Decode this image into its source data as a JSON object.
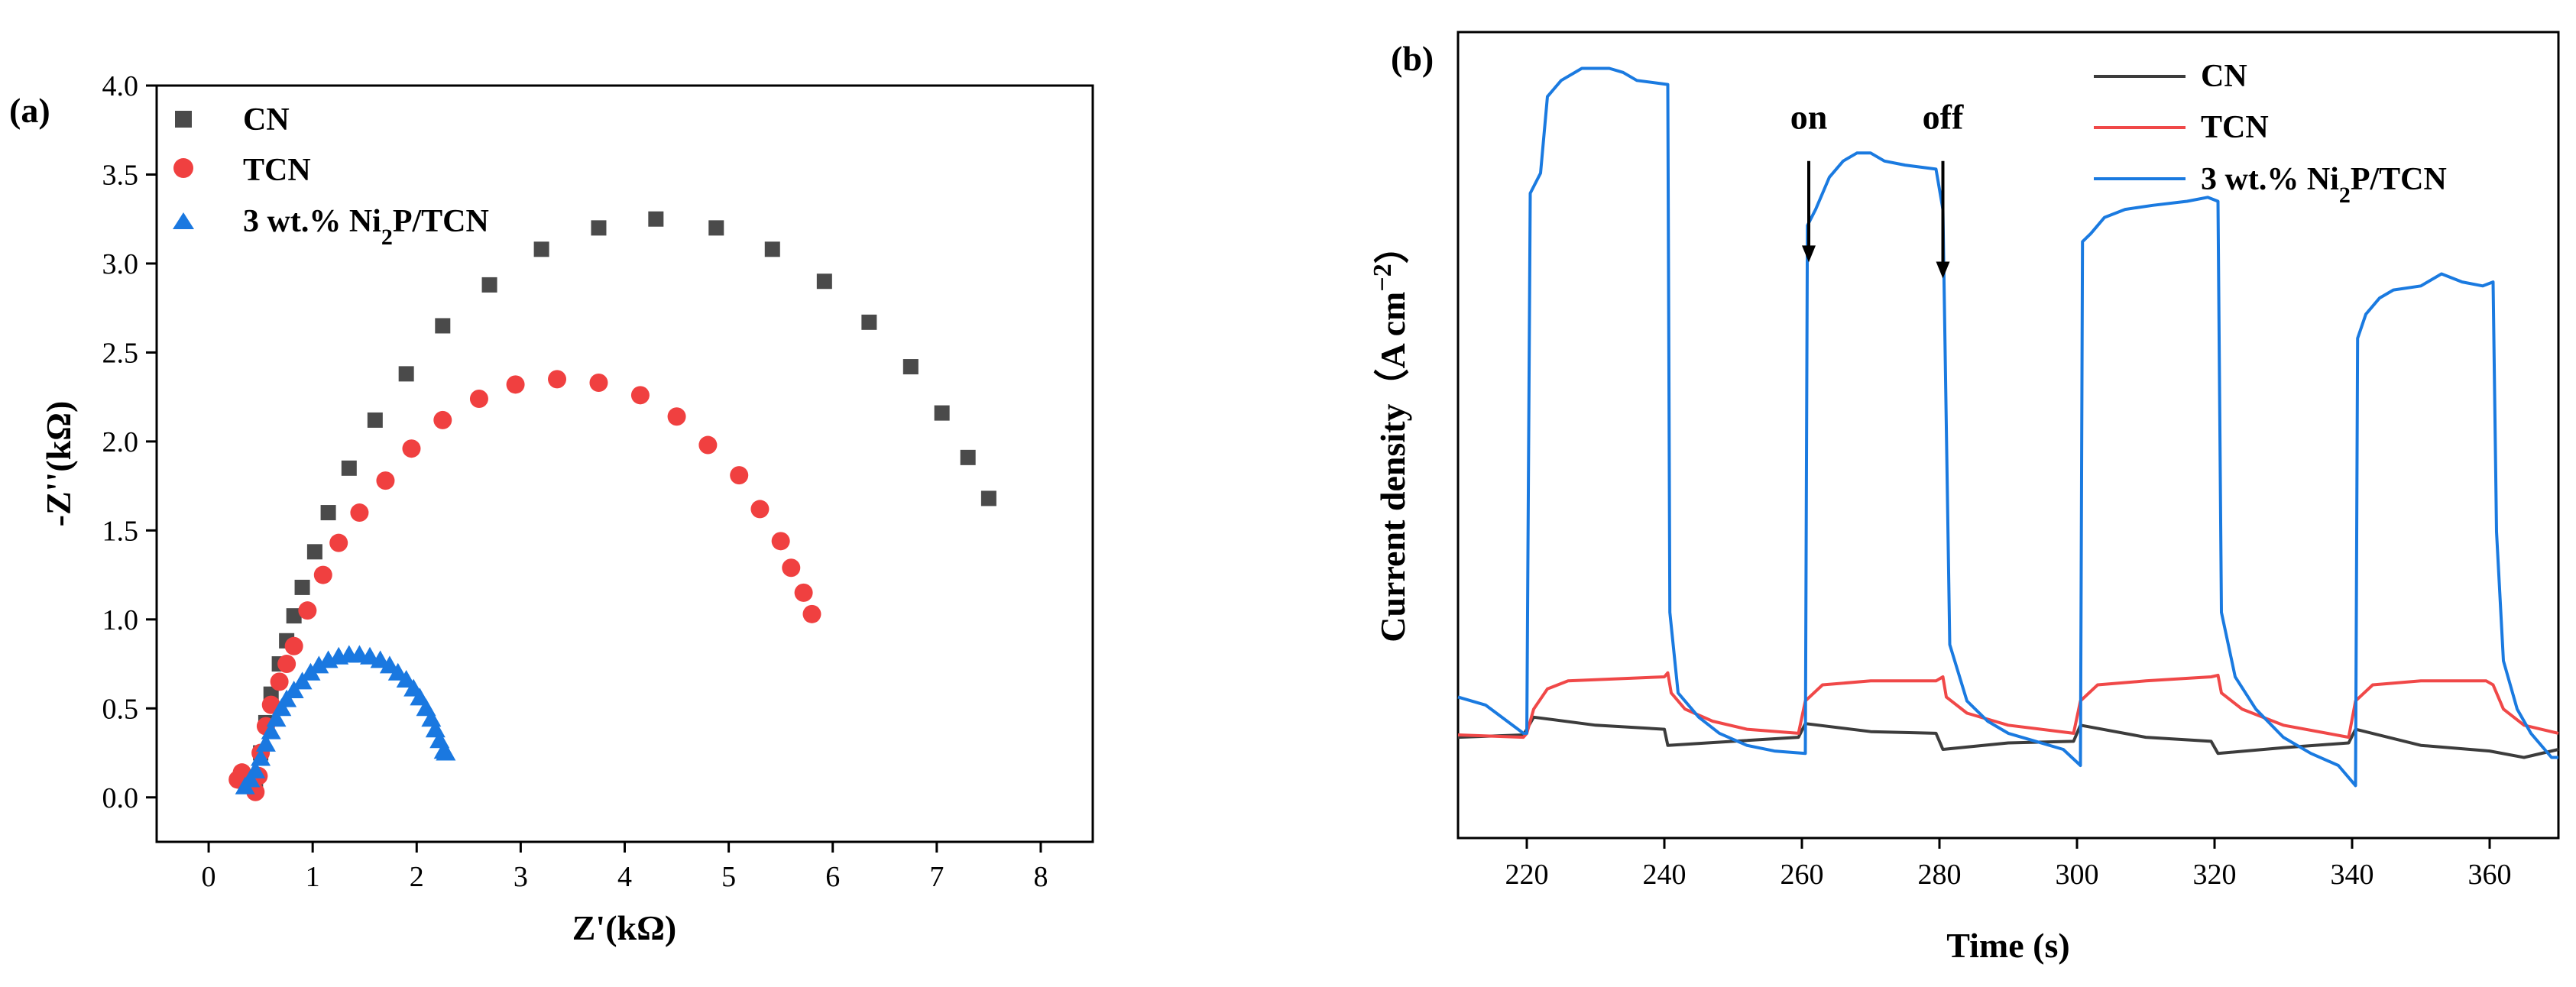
{
  "chart_data": [
    {
      "panel_label": "(a)",
      "type": "scatter",
      "xlabel": "Z'(kΩ)",
      "ylabel": "-Z''(kΩ)",
      "xlim": [
        -0.5,
        8.5
      ],
      "ylim": [
        -0.25,
        4.0
      ],
      "xticks": [
        0,
        1,
        2,
        3,
        4,
        5,
        6,
        7,
        8
      ],
      "yticks": [
        0.0,
        0.5,
        1.0,
        1.5,
        2.0,
        2.5,
        3.0,
        3.5,
        4.0
      ],
      "xtick_labels": [
        "0",
        "1",
        "2",
        "3",
        "4",
        "5",
        "6",
        "7",
        "8"
      ],
      "ytick_labels": [
        "0.0",
        "0.5",
        "1.0",
        "1.5",
        "2.0",
        "2.5",
        "3.0",
        "3.5",
        "4.0"
      ],
      "legend_position": "top-left",
      "series": [
        {
          "name": "CN",
          "marker": "square",
          "color": "#4a4a4a",
          "points": [
            [
              0.45,
              0.05
            ],
            [
              0.5,
              0.25
            ],
            [
              0.55,
              0.42
            ],
            [
              0.6,
              0.58
            ],
            [
              0.68,
              0.75
            ],
            [
              0.75,
              0.88
            ],
            [
              0.82,
              1.02
            ],
            [
              0.9,
              1.18
            ],
            [
              1.02,
              1.38
            ],
            [
              1.15,
              1.6
            ],
            [
              1.35,
              1.85
            ],
            [
              1.6,
              2.12
            ],
            [
              1.9,
              2.38
            ],
            [
              2.25,
              2.65
            ],
            [
              2.7,
              2.88
            ],
            [
              3.2,
              3.08
            ],
            [
              3.75,
              3.2
            ],
            [
              4.3,
              3.25
            ],
            [
              4.88,
              3.2
            ],
            [
              5.42,
              3.08
            ],
            [
              5.92,
              2.9
            ],
            [
              6.35,
              2.67
            ],
            [
              6.75,
              2.42
            ],
            [
              7.05,
              2.16
            ],
            [
              7.3,
              1.91
            ],
            [
              7.5,
              1.68
            ]
          ]
        },
        {
          "name": "TCN",
          "marker": "circle",
          "color": "#f04040",
          "points": [
            [
              0.28,
              0.1
            ],
            [
              0.32,
              0.14
            ],
            [
              0.38,
              0.08
            ],
            [
              0.45,
              0.03
            ],
            [
              0.48,
              0.12
            ],
            [
              0.5,
              0.25
            ],
            [
              0.55,
              0.4
            ],
            [
              0.6,
              0.52
            ],
            [
              0.68,
              0.65
            ],
            [
              0.75,
              0.75
            ],
            [
              0.82,
              0.85
            ],
            [
              0.95,
              1.05
            ],
            [
              1.1,
              1.25
            ],
            [
              1.25,
              1.43
            ],
            [
              1.45,
              1.6
            ],
            [
              1.7,
              1.78
            ],
            [
              1.95,
              1.96
            ],
            [
              2.25,
              2.12
            ],
            [
              2.6,
              2.24
            ],
            [
              2.95,
              2.32
            ],
            [
              3.35,
              2.35
            ],
            [
              3.75,
              2.33
            ],
            [
              4.15,
              2.26
            ],
            [
              4.5,
              2.14
            ],
            [
              4.8,
              1.98
            ],
            [
              5.1,
              1.81
            ],
            [
              5.3,
              1.62
            ],
            [
              5.5,
              1.44
            ],
            [
              5.6,
              1.29
            ],
            [
              5.72,
              1.15
            ],
            [
              5.8,
              1.03
            ]
          ]
        },
        {
          "name": "3 wt.% Ni2P/TCN",
          "marker": "triangle",
          "color": "#1a78e0",
          "points": [
            [
              0.35,
              0.06
            ],
            [
              0.4,
              0.1
            ],
            [
              0.45,
              0.15
            ],
            [
              0.5,
              0.22
            ],
            [
              0.55,
              0.3
            ],
            [
              0.6,
              0.37
            ],
            [
              0.65,
              0.44
            ],
            [
              0.7,
              0.5
            ],
            [
              0.75,
              0.55
            ],
            [
              0.82,
              0.6
            ],
            [
              0.9,
              0.65
            ],
            [
              0.98,
              0.7
            ],
            [
              1.06,
              0.74
            ],
            [
              1.15,
              0.77
            ],
            [
              1.25,
              0.79
            ],
            [
              1.35,
              0.8
            ],
            [
              1.45,
              0.8
            ],
            [
              1.55,
              0.79
            ],
            [
              1.65,
              0.77
            ],
            [
              1.74,
              0.74
            ],
            [
              1.82,
              0.7
            ],
            [
              1.9,
              0.66
            ],
            [
              1.97,
              0.61
            ],
            [
              2.03,
              0.56
            ],
            [
              2.09,
              0.5
            ],
            [
              2.14,
              0.44
            ],
            [
              2.18,
              0.38
            ],
            [
              2.22,
              0.32
            ],
            [
              2.26,
              0.26
            ],
            [
              2.28,
              0.25
            ]
          ]
        }
      ]
    },
    {
      "panel_label": "(b)",
      "type": "line",
      "xlabel": "Time (s)",
      "ylabel": "Current density（A cm",
      "ylabel_superscript": "−2",
      "ylabel_close": "）",
      "xlim": [
        210,
        370
      ],
      "ylim": [
        0,
        100
      ],
      "xticks": [
        220,
        240,
        260,
        280,
        300,
        320,
        340,
        360
      ],
      "xtick_labels": [
        "220",
        "240",
        "260",
        "280",
        "300",
        "320",
        "340",
        "360"
      ],
      "legend_position": "top-right",
      "annotations": [
        {
          "text": "on",
          "x": 261,
          "y_text": 88,
          "arrow_from": 84,
          "arrow_to": 72
        },
        {
          "text": "off",
          "x": 280.5,
          "y_text": 88,
          "arrow_from": 84,
          "arrow_to": 70
        }
      ],
      "series": [
        {
          "name": "CN",
          "color": "#3c3c3c",
          "points": [
            [
              210,
              12.5
            ],
            [
              219.5,
              12.8
            ],
            [
              220,
              13.5
            ],
            [
              221,
              15.0
            ],
            [
              230,
              14.0
            ],
            [
              240,
              13.5
            ],
            [
              240.5,
              11.5
            ],
            [
              250,
              12.0
            ],
            [
              259.5,
              12.5
            ],
            [
              260.5,
              14.2
            ],
            [
              270,
              13.2
            ],
            [
              279.5,
              13.0
            ],
            [
              280.5,
              11.0
            ],
            [
              290,
              11.8
            ],
            [
              299.5,
              12.0
            ],
            [
              300.5,
              14.0
            ],
            [
              310,
              12.5
            ],
            [
              319.5,
              12.0
            ],
            [
              320.5,
              10.5
            ],
            [
              330,
              11.2
            ],
            [
              339.5,
              11.8
            ],
            [
              340.5,
              13.5
            ],
            [
              350,
              11.5
            ],
            [
              360,
              10.8
            ],
            [
              365,
              10.0
            ],
            [
              370,
              11.0
            ]
          ]
        },
        {
          "name": "TCN",
          "color": "#f04848",
          "points": [
            [
              210,
              12.8
            ],
            [
              219.5,
              12.5
            ],
            [
              220,
              13.0
            ],
            [
              221,
              16.0
            ],
            [
              223,
              18.5
            ],
            [
              226,
              19.5
            ],
            [
              240,
              20.0
            ],
            [
              240.5,
              20.5
            ],
            [
              241,
              18.0
            ],
            [
              243,
              16.0
            ],
            [
              247,
              14.5
            ],
            [
              252,
              13.5
            ],
            [
              259.5,
              13.0
            ],
            [
              260.5,
              17.0
            ],
            [
              263,
              19.0
            ],
            [
              270,
              19.5
            ],
            [
              279.5,
              19.5
            ],
            [
              280.5,
              20.0
            ],
            [
              281,
              17.5
            ],
            [
              284,
              15.5
            ],
            [
              290,
              14.0
            ],
            [
              299.5,
              13.0
            ],
            [
              300.5,
              17.0
            ],
            [
              303,
              19.0
            ],
            [
              310,
              19.5
            ],
            [
              319.5,
              20.0
            ],
            [
              320.5,
              20.2
            ],
            [
              321,
              18.0
            ],
            [
              324,
              16.0
            ],
            [
              330,
              14.0
            ],
            [
              339.5,
              12.5
            ],
            [
              340.5,
              17.0
            ],
            [
              343,
              19.0
            ],
            [
              350,
              19.5
            ],
            [
              359.5,
              19.5
            ],
            [
              360.5,
              19.0
            ],
            [
              362,
              16.0
            ],
            [
              365,
              14.0
            ],
            [
              370,
              13.0
            ]
          ]
        },
        {
          "name": "3 wt.% Ni2P/TCN",
          "color": "#1a7ae0",
          "points": [
            [
              210,
              17.5
            ],
            [
              214,
              16.5
            ],
            [
              219.5,
              13.0
            ],
            [
              220,
              13.0
            ],
            [
              220.5,
              80.0
            ],
            [
              222,
              82.5
            ],
            [
              223,
              92.0
            ],
            [
              225,
              94.0
            ],
            [
              228,
              95.5
            ],
            [
              232,
              95.5
            ],
            [
              234,
              95.0
            ],
            [
              236,
              94.0
            ],
            [
              240.5,
              93.5
            ],
            [
              240.8,
              28.0
            ],
            [
              242,
              18.0
            ],
            [
              245,
              15.0
            ],
            [
              248,
              13.0
            ],
            [
              252,
              11.5
            ],
            [
              256,
              10.8
            ],
            [
              260.5,
              10.5
            ],
            [
              260.8,
              76.0
            ],
            [
              262,
              78.0
            ],
            [
              264,
              82.0
            ],
            [
              266,
              84.0
            ],
            [
              268,
              85.0
            ],
            [
              270,
              85.0
            ],
            [
              272,
              84.0
            ],
            [
              275,
              83.5
            ],
            [
              279.5,
              83.0
            ],
            [
              280.5,
              78.0
            ],
            [
              281.5,
              24.0
            ],
            [
              284,
              17.0
            ],
            [
              287,
              14.5
            ],
            [
              290,
              13.0
            ],
            [
              294,
              12.0
            ],
            [
              298,
              11.0
            ],
            [
              300.5,
              9.0
            ],
            [
              300.8,
              74.0
            ],
            [
              302,
              75.0
            ],
            [
              304,
              77.0
            ],
            [
              307,
              78.0
            ],
            [
              311,
              78.5
            ],
            [
              316,
              79.0
            ],
            [
              319,
              79.5
            ],
            [
              320.5,
              79.0
            ],
            [
              321,
              28.0
            ],
            [
              323,
              20.0
            ],
            [
              326,
              16.0
            ],
            [
              330,
              12.5
            ],
            [
              334,
              10.5
            ],
            [
              338,
              9.0
            ],
            [
              340.5,
              6.5
            ],
            [
              340.8,
              62.0
            ],
            [
              342,
              65.0
            ],
            [
              344,
              67.0
            ],
            [
              346,
              68.0
            ],
            [
              350,
              68.5
            ],
            [
              353,
              70.0
            ],
            [
              356,
              69.0
            ],
            [
              359,
              68.5
            ],
            [
              360.5,
              69.0
            ],
            [
              361,
              38.0
            ],
            [
              362,
              22.0
            ],
            [
              364,
              16.0
            ],
            [
              366,
              13.0
            ],
            [
              368,
              11.0
            ],
            [
              369,
              10.0
            ],
            [
              370,
              10.0
            ]
          ]
        }
      ]
    }
  ]
}
